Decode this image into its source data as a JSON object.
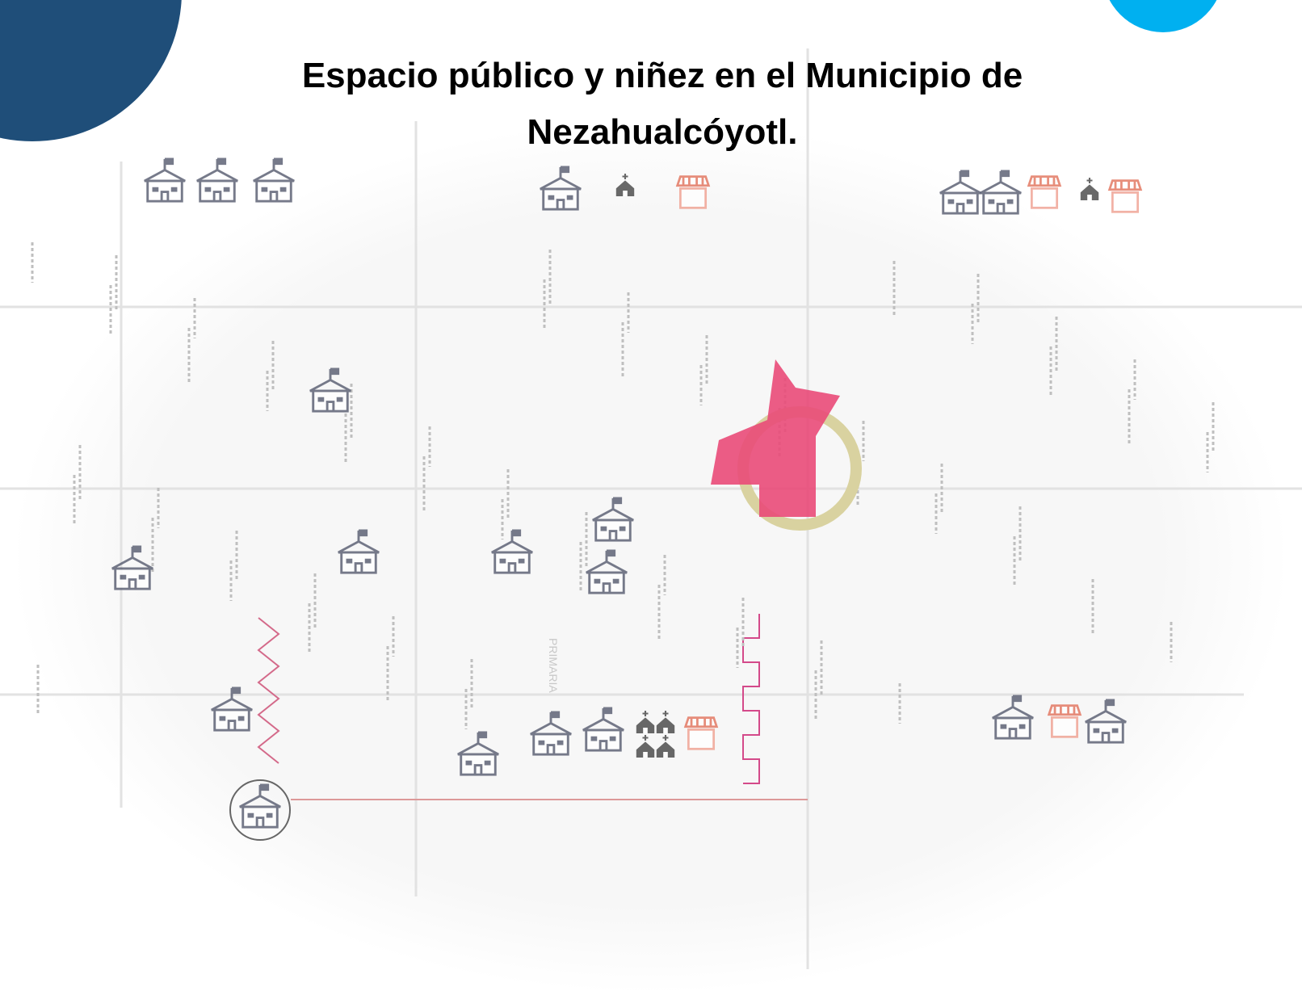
{
  "header": {
    "title_lines": [
      "Espacio público y niñez en el Municipio de",
      "Nezahualcóyotl."
    ]
  },
  "map": {
    "labels": [
      "PRIMARIA"
    ]
  }
}
